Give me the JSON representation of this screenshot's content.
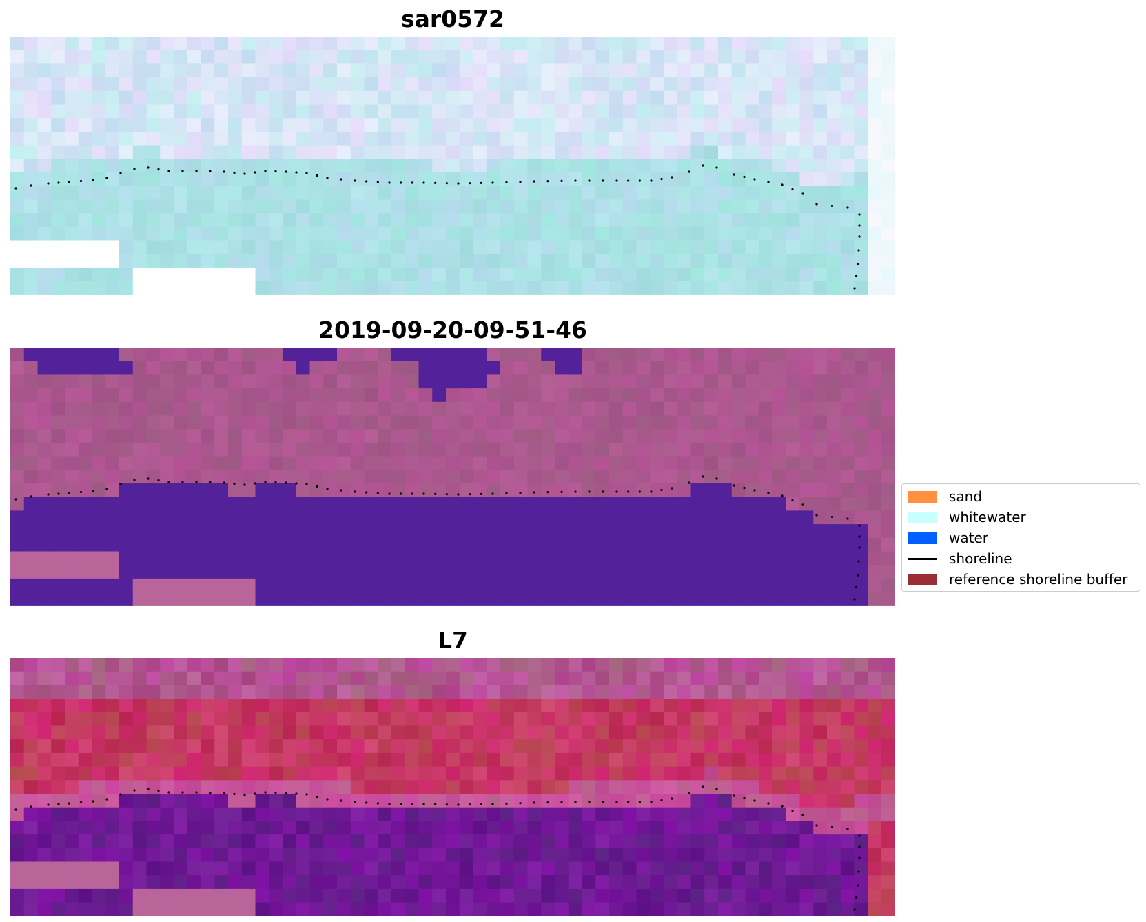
{
  "panels": [
    {
      "title": "sar0572",
      "style": "sar"
    },
    {
      "title": "2019-09-20-09-51-46",
      "style": "classified"
    },
    {
      "title": "L7",
      "style": "falsecolor"
    }
  ],
  "legend": {
    "items": [
      {
        "label": "sand",
        "color": "#ff9040",
        "kind": "patch"
      },
      {
        "label": "whitewater",
        "color": "#c8ffff",
        "kind": "patch"
      },
      {
        "label": "water",
        "color": "#0060ff",
        "kind": "patch"
      },
      {
        "label": "shoreline",
        "color": "#000000",
        "kind": "line"
      },
      {
        "label": "reference shoreline buffer",
        "color": "#9b2d34",
        "kind": "patch"
      }
    ]
  },
  "colors": {
    "shoreline_dots": "#000000",
    "sar_light": "#d6e6f6",
    "sar_water": "#a9e0e6",
    "classified_land": "#a8588e",
    "classified_water": "#53229a",
    "classified_nodata": "#b9659a",
    "falsecolor_land": "#c0244e",
    "falsecolor_water": "#65108e"
  }
}
